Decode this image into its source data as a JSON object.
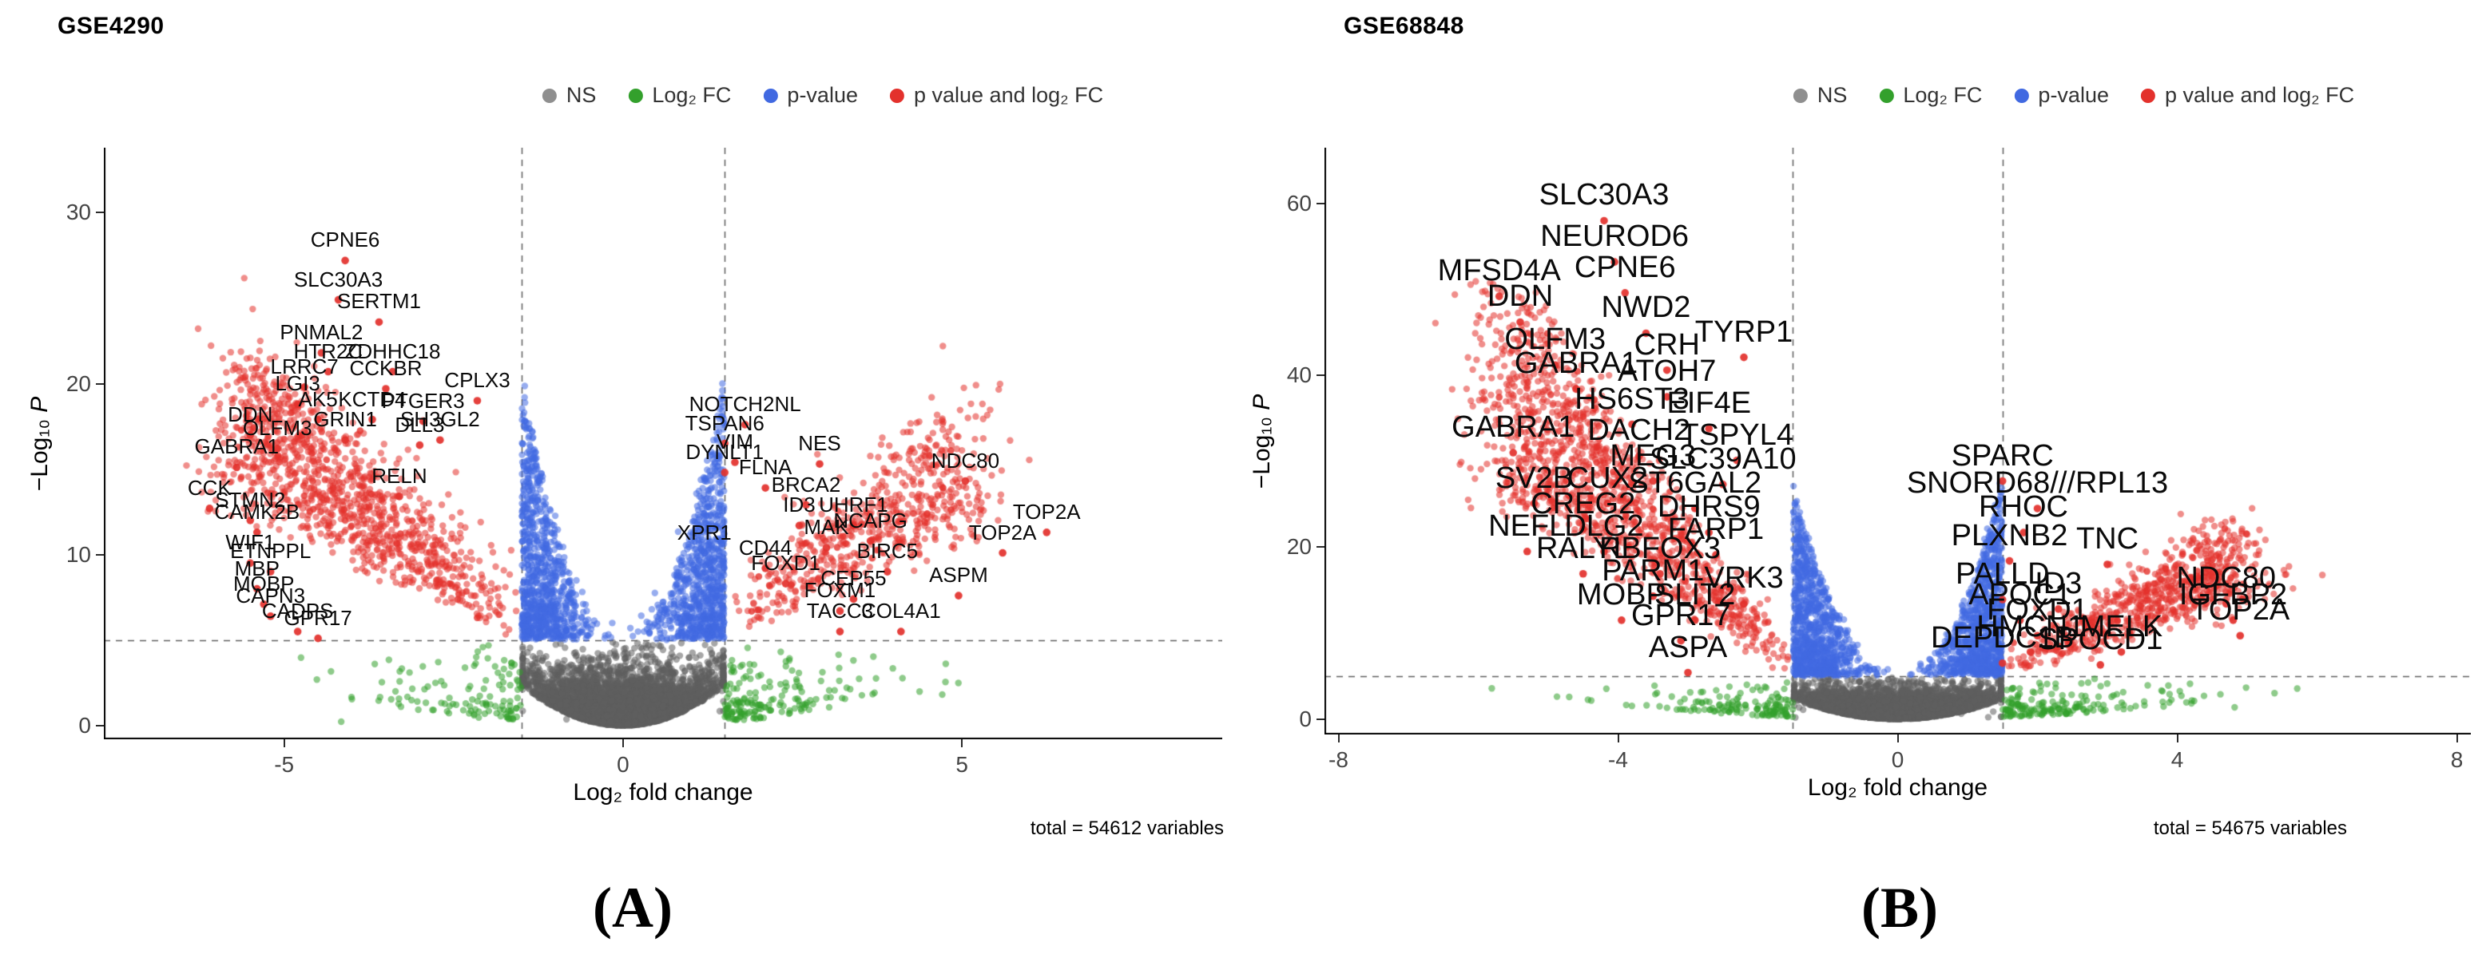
{
  "panels": [
    {
      "title": "GSE4290",
      "letter": "(A)",
      "total_label": "total = 54612 variables",
      "xlabel": "Log₂ fold change",
      "ylabel_prefix": "−Log₁₀ ",
      "ylabel_var": "P",
      "legend": {
        "items": [
          {
            "id": "ns",
            "label": "NS",
            "color": "#8f8f8f"
          },
          {
            "id": "log2fc",
            "label": "Log₂ FC",
            "color": "#33a02c"
          },
          {
            "id": "p-value",
            "label": "p-value",
            "color": "#4169e1"
          },
          {
            "id": "p-and-log2fc",
            "label": "p value and log₂ FC",
            "color": "#e3312c"
          }
        ]
      }
    },
    {
      "title": "GSE68848",
      "letter": "(B)",
      "total_label": "total = 54675 variables",
      "xlabel": "Log₂ fold change",
      "ylabel_prefix": "−Log₁₀ ",
      "ylabel_var": "P",
      "legend": {
        "items": [
          {
            "id": "ns",
            "label": "NS",
            "color": "#8f8f8f"
          },
          {
            "id": "log2fc",
            "label": "Log₂ FC",
            "color": "#33a02c"
          },
          {
            "id": "p-value",
            "label": "p-value",
            "color": "#4169e1"
          },
          {
            "id": "p-and-log2fc",
            "label": "p value and log₂ FC",
            "color": "#e3312c"
          }
        ]
      }
    }
  ],
  "chart_data": [
    {
      "type": "scatter",
      "variant": "volcano",
      "title": "GSE4290",
      "xlabel": "Log2 fold change",
      "ylabel": "-Log10 P",
      "xlim": [
        -7.66,
        8.84
      ],
      "ylim": [
        -0.8,
        33.8
      ],
      "xticks": [
        -5,
        0,
        5
      ],
      "yticks": [
        0,
        10,
        20,
        30
      ],
      "grid": false,
      "legend_position": "top",
      "thresholds": {
        "log2fc": [
          -1.5,
          1.5
        ],
        "pvalue_line": 5
      },
      "total_variables": 54612,
      "categories": {
        "ns": "#5f5f5f",
        "log2fc": "#33a02c",
        "pvalue": "#4169e1",
        "both": "#e3312c"
      },
      "cloud": {
        "ns": 5600,
        "pvalue": 1700,
        "both_left": 1150,
        "both_right": 620,
        "log2fc": 300,
        "wing_height": 15,
        "left_len": 3.8,
        "left_h": 16,
        "right_len": 3.1,
        "right_h": 12,
        "green_reach": 5.0
      },
      "labeled_genes": [
        {
          "gene": "CPNE6",
          "x": -4.1,
          "y": 27.2
        },
        {
          "gene": "SLC30A3",
          "x": -4.2,
          "y": 24.9
        },
        {
          "gene": "SERTM1",
          "x": -3.6,
          "y": 23.6
        },
        {
          "gene": "PNMAL2",
          "x": -4.45,
          "y": 21.8
        },
        {
          "gene": "HTR2C",
          "x": -4.35,
          "y": 20.7
        },
        {
          "gene": "ZDHHC18",
          "x": -3.4,
          "y": 20.7
        },
        {
          "gene": "LRRC7",
          "x": -4.7,
          "y": 19.8
        },
        {
          "gene": "CCKBR",
          "x": -3.5,
          "y": 19.7
        },
        {
          "gene": "LGI3",
          "x": -4.8,
          "y": 18.8
        },
        {
          "gene": "CPLX3",
          "x": -2.15,
          "y": 19.0
        },
        {
          "gene": "AK5",
          "x": -4.5,
          "y": 17.9
        },
        {
          "gene": "KCTD4",
          "x": -3.7,
          "y": 17.9
        },
        {
          "gene": "PTGER3",
          "x": -2.95,
          "y": 17.8
        },
        {
          "gene": "DDN",
          "x": -5.5,
          "y": 17.0
        },
        {
          "gene": "GRIN1",
          "x": -4.1,
          "y": 16.7
        },
        {
          "gene": "SH3GL2",
          "x": -2.7,
          "y": 16.7
        },
        {
          "gene": "OLFM3",
          "x": -5.1,
          "y": 16.2
        },
        {
          "gene": "DLL3",
          "x": -3.0,
          "y": 16.4
        },
        {
          "gene": "GABRA1",
          "x": -5.7,
          "y": 15.1
        },
        {
          "gene": "RELN",
          "x": -3.3,
          "y": 13.4
        },
        {
          "gene": "CCK",
          "x": -6.1,
          "y": 12.7
        },
        {
          "gene": "STMN2",
          "x": -5.5,
          "y": 12.0
        },
        {
          "gene": "CAMK2B",
          "x": -5.4,
          "y": 11.3
        },
        {
          "gene": "WIF1",
          "x": -5.5,
          "y": 9.5
        },
        {
          "gene": "ETNPPL",
          "x": -5.2,
          "y": 9.0
        },
        {
          "gene": "MBP",
          "x": -5.4,
          "y": 8.0
        },
        {
          "gene": "MOBP",
          "x": -5.3,
          "y": 7.1
        },
        {
          "gene": "CAPN3",
          "x": -5.2,
          "y": 6.4
        },
        {
          "gene": "CADPS",
          "x": -4.8,
          "y": 5.5
        },
        {
          "gene": "GPR17",
          "x": -4.5,
          "y": 5.1
        },
        {
          "gene": "NOTCH2NL",
          "x": 1.8,
          "y": 17.6
        },
        {
          "gene": "TSPAN6",
          "x": 1.5,
          "y": 16.5
        },
        {
          "gene": "VIM",
          "x": 1.65,
          "y": 15.4
        },
        {
          "gene": "DYNLT1",
          "x": 1.5,
          "y": 14.8
        },
        {
          "gene": "NES",
          "x": 2.9,
          "y": 15.3
        },
        {
          "gene": "NDC80",
          "x": 5.05,
          "y": 14.3
        },
        {
          "gene": "FLNA",
          "x": 2.1,
          "y": 13.9
        },
        {
          "gene": "BRCA2",
          "x": 2.7,
          "y": 12.9
        },
        {
          "gene": "ID3",
          "x": 2.6,
          "y": 11.7
        },
        {
          "gene": "UHRF1",
          "x": 3.4,
          "y": 11.7
        },
        {
          "gene": "NCAPG",
          "x": 3.65,
          "y": 10.8
        },
        {
          "gene": "TOP2A",
          "x": 6.25,
          "y": 11.3
        },
        {
          "gene": "TOP2A",
          "x": 5.6,
          "y": 10.1
        },
        {
          "gene": "XPR1",
          "x": 1.2,
          "y": 10.1
        },
        {
          "gene": "MAK",
          "x": 3.0,
          "y": 10.4
        },
        {
          "gene": "CD44",
          "x": 2.1,
          "y": 9.2
        },
        {
          "gene": "BIRC5",
          "x": 3.9,
          "y": 9.0
        },
        {
          "gene": "FOXD1",
          "x": 2.4,
          "y": 8.3
        },
        {
          "gene": "CEP55",
          "x": 3.4,
          "y": 7.4
        },
        {
          "gene": "ASPM",
          "x": 4.95,
          "y": 7.6
        },
        {
          "gene": "FOXM1",
          "x": 3.2,
          "y": 6.7
        },
        {
          "gene": "COL4A1",
          "x": 4.1,
          "y": 5.5
        },
        {
          "gene": "TACC3",
          "x": 3.2,
          "y": 5.5
        }
      ]
    },
    {
      "type": "scatter",
      "variant": "volcano",
      "title": "GSE68848",
      "xlabel": "Log2 fold change",
      "ylabel": "-Log10 P",
      "xlim": [
        -8.2,
        8.2
      ],
      "ylim": [
        -1.8,
        66.5
      ],
      "xticks": [
        -8,
        -4,
        0,
        4,
        8
      ],
      "yticks": [
        0,
        20,
        40,
        60
      ],
      "grid": false,
      "legend_position": "top",
      "thresholds": {
        "log2fc": [
          -1.5,
          1.5
        ],
        "pvalue_line": 5
      },
      "total_variables": 54675,
      "categories": {
        "ns": "#5f5f5f",
        "log2fc": "#33a02c",
        "pvalue": "#4169e1",
        "both": "#e3312c"
      },
      "cloud": {
        "ns": 5600,
        "pvalue": 1900,
        "both_left": 1300,
        "both_right": 750,
        "log2fc": 330,
        "wing_height": 22,
        "left_len": 3.8,
        "left_h": 46,
        "right_len": 3.0,
        "right_h": 17,
        "green_reach": 6.0
      },
      "labeled_genes": [
        {
          "gene": "SLC30A3",
          "x": -4.2,
          "y": 58.0
        },
        {
          "gene": "NEUROD6",
          "x": -4.05,
          "y": 53.2
        },
        {
          "gene": "MFSD4A",
          "x": -5.7,
          "y": 49.2
        },
        {
          "gene": "CPNE6",
          "x": -3.9,
          "y": 49.6
        },
        {
          "gene": "DDN",
          "x": -5.4,
          "y": 46.2
        },
        {
          "gene": "NWD2",
          "x": -3.6,
          "y": 44.9
        },
        {
          "gene": "OLFM3",
          "x": -4.9,
          "y": 41.2
        },
        {
          "gene": "CRH",
          "x": -3.3,
          "y": 40.6
        },
        {
          "gene": "TYRP1",
          "x": -2.2,
          "y": 42.1
        },
        {
          "gene": "GABRA1",
          "x": -4.6,
          "y": 38.4
        },
        {
          "gene": "ATOH7",
          "x": -3.3,
          "y": 37.5
        },
        {
          "gene": "HS6ST3",
          "x": -3.8,
          "y": 34.3
        },
        {
          "gene": "EIF4E",
          "x": -2.7,
          "y": 33.8
        },
        {
          "gene": "GABRA1",
          "x": -5.5,
          "y": 31.0
        },
        {
          "gene": "DACH2",
          "x": -3.7,
          "y": 30.6
        },
        {
          "gene": "TSPYL4",
          "x": -2.3,
          "y": 30.1
        },
        {
          "gene": "MEG3",
          "x": -3.5,
          "y": 27.7
        },
        {
          "gene": "SLC39A10",
          "x": -2.5,
          "y": 27.3
        },
        {
          "gene": "SPARC",
          "x": 1.5,
          "y": 27.7
        },
        {
          "gene": "SV2B",
          "x": -5.2,
          "y": 25.1
        },
        {
          "gene": "CUX2",
          "x": -4.15,
          "y": 25.1
        },
        {
          "gene": "ST6GAL2",
          "x": -2.9,
          "y": 24.5
        },
        {
          "gene": "SNORD68///RPL13",
          "x": 2.0,
          "y": 24.5
        },
        {
          "gene": "CREG2",
          "x": -4.5,
          "y": 22.1
        },
        {
          "gene": "DHRS9",
          "x": -2.7,
          "y": 21.7
        },
        {
          "gene": "RHOC",
          "x": 1.8,
          "y": 21.7
        },
        {
          "gene": "NEFL",
          "x": -5.3,
          "y": 19.5
        },
        {
          "gene": "DLG2",
          "x": -4.2,
          "y": 19.5
        },
        {
          "gene": "FARP1",
          "x": -2.6,
          "y": 19.1
        },
        {
          "gene": "PLXNB2",
          "x": 1.6,
          "y": 18.4
        },
        {
          "gene": "TNC",
          "x": 3.0,
          "y": 18.0
        },
        {
          "gene": "RALYL",
          "x": -4.5,
          "y": 16.9
        },
        {
          "gene": "RBFOX3",
          "x": -3.4,
          "y": 16.9
        },
        {
          "gene": "PARM1",
          "x": -3.5,
          "y": 14.3
        },
        {
          "gene": "VRK3",
          "x": -2.2,
          "y": 13.4
        },
        {
          "gene": "PALLD",
          "x": 1.5,
          "y": 13.9
        },
        {
          "gene": "ID3",
          "x": 2.3,
          "y": 12.8
        },
        {
          "gene": "NDC80",
          "x": 4.7,
          "y": 13.4
        },
        {
          "gene": "MOBP",
          "x": -3.95,
          "y": 11.5
        },
        {
          "gene": "SLIT2",
          "x": -2.9,
          "y": 11.5
        },
        {
          "gene": "APOC1",
          "x": 1.75,
          "y": 11.5
        },
        {
          "gene": "IGFBP2",
          "x": 4.8,
          "y": 11.5
        },
        {
          "gene": "GPR17",
          "x": -3.1,
          "y": 9.1
        },
        {
          "gene": "FOXD1",
          "x": 2.0,
          "y": 9.7
        },
        {
          "gene": "TOP2A",
          "x": 4.9,
          "y": 9.7
        },
        {
          "gene": "HMCN1",
          "x": 1.9,
          "y": 7.8
        },
        {
          "gene": "MELK",
          "x": 3.2,
          "y": 7.8
        },
        {
          "gene": "ASPA",
          "x": -3.0,
          "y": 5.4
        },
        {
          "gene": "DEPDC1B",
          "x": 1.5,
          "y": 6.5
        },
        {
          "gene": "SPOCD1",
          "x": 2.9,
          "y": 6.3
        }
      ]
    }
  ]
}
